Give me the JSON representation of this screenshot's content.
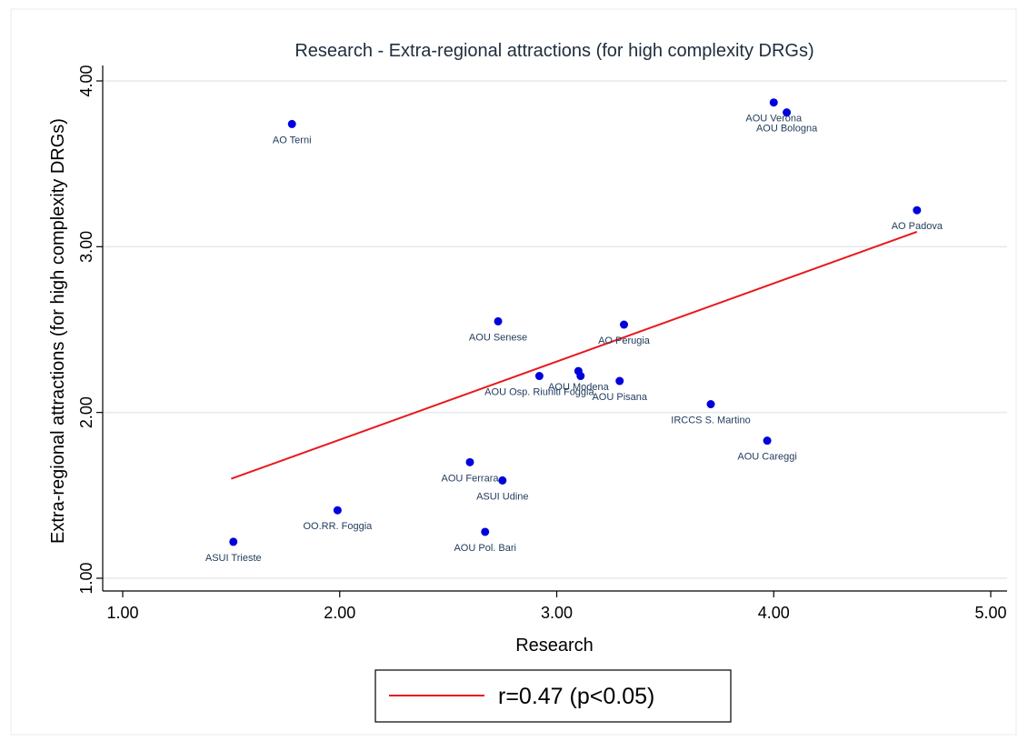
{
  "chart_data": {
    "type": "scatter",
    "title": "Research - Extra-regional attractions (for high complexity DRGs)",
    "xlabel": "Research",
    "ylabel": "Extra-regional attractions (for high complexity DRGs)",
    "xlim": [
      1.0,
      5.0
    ],
    "ylim": [
      1.0,
      4.0
    ],
    "x_ticks": [
      "1.00",
      "2.00",
      "3.00",
      "4.00",
      "5.00"
    ],
    "y_ticks": [
      "1.00",
      "2.00",
      "3.00",
      "4.00"
    ],
    "grid": "horizontal",
    "legend_position": "bottom-center",
    "point_color": "#0000dd",
    "line_color": "#e8191d",
    "points": [
      {
        "label": "AO Terni",
        "x": 1.78,
        "y": 3.74
      },
      {
        "label": "AOU Verona",
        "x": 4.0,
        "y": 3.87
      },
      {
        "label": "AOU Bologna",
        "x": 4.06,
        "y": 3.81
      },
      {
        "label": "AO Padova",
        "x": 4.66,
        "y": 3.22
      },
      {
        "label": "AOU Senese",
        "x": 2.73,
        "y": 2.55
      },
      {
        "label": "AO Perugia",
        "x": 3.31,
        "y": 2.53
      },
      {
        "label": "AOU Modena",
        "x": 3.1,
        "y": 2.25
      },
      {
        "label": "AOU Osp. Riuniti Foggia",
        "x": 2.92,
        "y": 2.22
      },
      {
        "label": "AOU Pisana",
        "x": 3.29,
        "y": 2.19
      },
      {
        "label": "IRCCS S. Martino",
        "x": 3.71,
        "y": 2.05
      },
      {
        "label": "AOU Careggi",
        "x": 3.97,
        "y": 1.83
      },
      {
        "label": "AOU Ferrara",
        "x": 2.6,
        "y": 1.7
      },
      {
        "label": "ASUI Udine",
        "x": 2.75,
        "y": 1.59
      },
      {
        "label": "OO.RR. Foggia",
        "x": 1.99,
        "y": 1.41
      },
      {
        "label": "AOU Pol. Bari",
        "x": 2.67,
        "y": 1.28
      },
      {
        "label": "ASUI Trieste",
        "x": 1.51,
        "y": 1.22
      },
      {
        "label": "",
        "x": 3.11,
        "y": 2.22
      }
    ],
    "fit_line": {
      "x": [
        1.5,
        4.66
      ],
      "y": [
        1.6,
        3.09
      ]
    },
    "legend": [
      {
        "label": "r=0.47 (p<0.05)",
        "color": "#e8191d"
      }
    ]
  }
}
